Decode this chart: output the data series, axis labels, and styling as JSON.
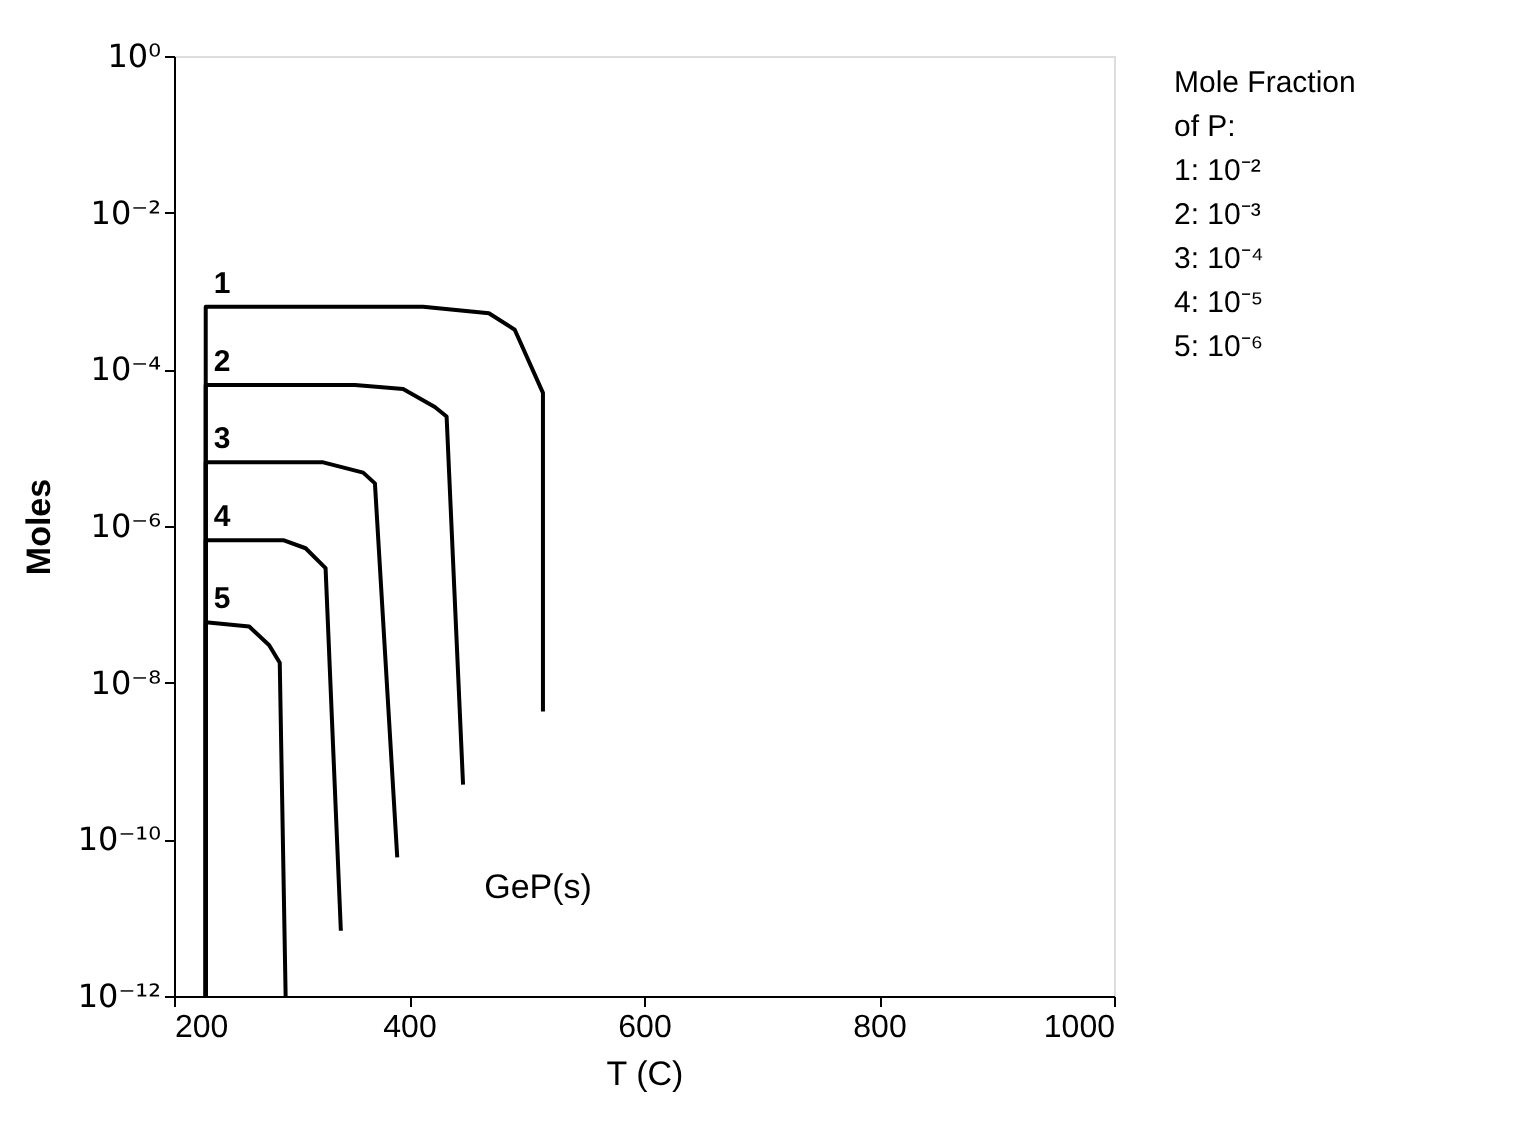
{
  "chart_data": {
    "type": "line",
    "xlabel": "T (C)",
    "ylabel": "Moles",
    "xlim": [
      200,
      1000
    ],
    "xticks": [
      200,
      400,
      600,
      800,
      1000
    ],
    "ylim": [
      1e-12,
      1
    ],
    "log": "y",
    "yticks": [
      {
        "value": 1e-12,
        "label": "10⁻¹²"
      },
      {
        "value": 1e-10,
        "label": "10⁻¹⁰"
      },
      {
        "value": 1e-08,
        "label": "10⁻⁸"
      },
      {
        "value": 1e-06,
        "label": "10⁻⁶"
      },
      {
        "value": 0.0001,
        "label": "10⁻⁴"
      },
      {
        "value": 0.01,
        "label": "10⁻²"
      },
      {
        "value": 1,
        "label": "10⁰"
      }
    ],
    "grid": false,
    "legend": false,
    "marker": "none",
    "line_style": "solid",
    "series": [
      {
        "name": "1",
        "color": "#000000",
        "x": [
          227,
          227,
          412,
          468,
          490,
          514,
          514
        ],
        "values": [
          1e-12,
          0.00063,
          0.00063,
          0.00052,
          0.00032,
          5e-05,
          4.3e-09
        ]
      },
      {
        "name": "2",
        "color": "#000000",
        "x": [
          227,
          227,
          354,
          395,
          422,
          432,
          446
        ],
        "values": [
          1e-12,
          6.3e-05,
          6.3e-05,
          5.6e-05,
          3.3e-05,
          2.5e-05,
          5e-10
        ]
      },
      {
        "name": "3",
        "color": "#000000",
        "x": [
          227,
          227,
          327,
          361,
          371,
          390
        ],
        "values": [
          1e-12,
          6.5e-06,
          6.5e-06,
          4.8e-06,
          3.5e-06,
          5.9e-11
        ]
      },
      {
        "name": "4",
        "color": "#000000",
        "x": [
          227,
          227,
          293,
          312,
          329,
          342
        ],
        "values": [
          1e-12,
          6.6e-07,
          6.6e-07,
          5.2e-07,
          2.9e-07,
          6.8e-12
        ]
      },
      {
        "name": "5",
        "color": "#000000",
        "x": [
          227,
          227,
          264,
          281,
          290,
          295
        ],
        "values": [
          1e-12,
          5.9e-08,
          5.2e-08,
          3e-08,
          1.8e-08,
          1e-12
        ]
      }
    ],
    "annotations": [
      "GeP(s)",
      "Mole Fraction",
      "of P:",
      "1: 10⁻²",
      "2: 10⁻³",
      "3: 10⁻⁴",
      "4: 10⁻⁵",
      "5: 10⁻⁶"
    ]
  }
}
